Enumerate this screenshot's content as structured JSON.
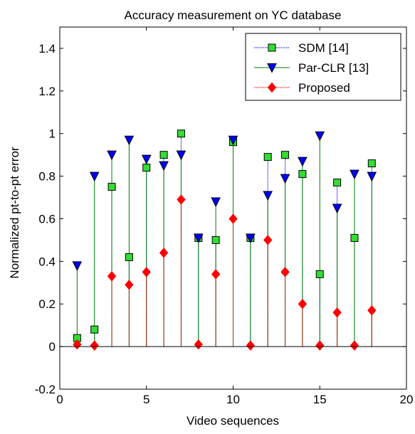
{
  "chart_data": {
    "type": "stem",
    "title": "Accuracy measurement on YC database",
    "xlabel": "Video sequences",
    "ylabel": "Normalized pt-to-pt error",
    "xlim": [
      0,
      20
    ],
    "ylim": [
      -0.2,
      1.5
    ],
    "xticks": [
      "0",
      "5",
      "10",
      "15",
      "20"
    ],
    "yticks": [
      "-0.2",
      "0",
      "0.2",
      "0.4",
      "0.6",
      "0.8",
      "1",
      "1.2",
      "1.4"
    ],
    "legend_position": "top-right",
    "x": [
      1,
      2,
      3,
      4,
      5,
      6,
      7,
      8,
      9,
      10,
      11,
      12,
      13,
      14,
      15,
      16,
      17,
      18
    ],
    "series": [
      {
        "name": "SDM [14]",
        "marker": "square",
        "color": "#0000ff",
        "marker_fill": "#33dd33",
        "values": [
          0.04,
          0.08,
          0.75,
          0.42,
          0.84,
          0.9,
          1.0,
          0.51,
          0.5,
          0.96,
          0.51,
          0.89,
          0.9,
          0.81,
          0.34,
          0.77,
          0.51,
          0.86
        ]
      },
      {
        "name": "Par-CLR [13]",
        "marker": "triangle-down",
        "color": "#008000",
        "marker_fill": "#0000ff",
        "values": [
          0.38,
          0.8,
          0.9,
          0.97,
          0.88,
          0.85,
          0.9,
          0.51,
          0.68,
          0.97,
          0.51,
          0.71,
          0.79,
          0.87,
          0.99,
          0.65,
          0.81,
          0.8
        ]
      },
      {
        "name": "Proposed",
        "marker": "diamond",
        "color": "#ff0000",
        "marker_fill": "#ff0000",
        "values": [
          0.01,
          0.005,
          0.33,
          0.29,
          0.35,
          0.44,
          0.69,
          0.01,
          0.34,
          0.6,
          0.005,
          0.5,
          0.35,
          0.2,
          0.005,
          0.16,
          0.005,
          0.17
        ]
      }
    ]
  }
}
